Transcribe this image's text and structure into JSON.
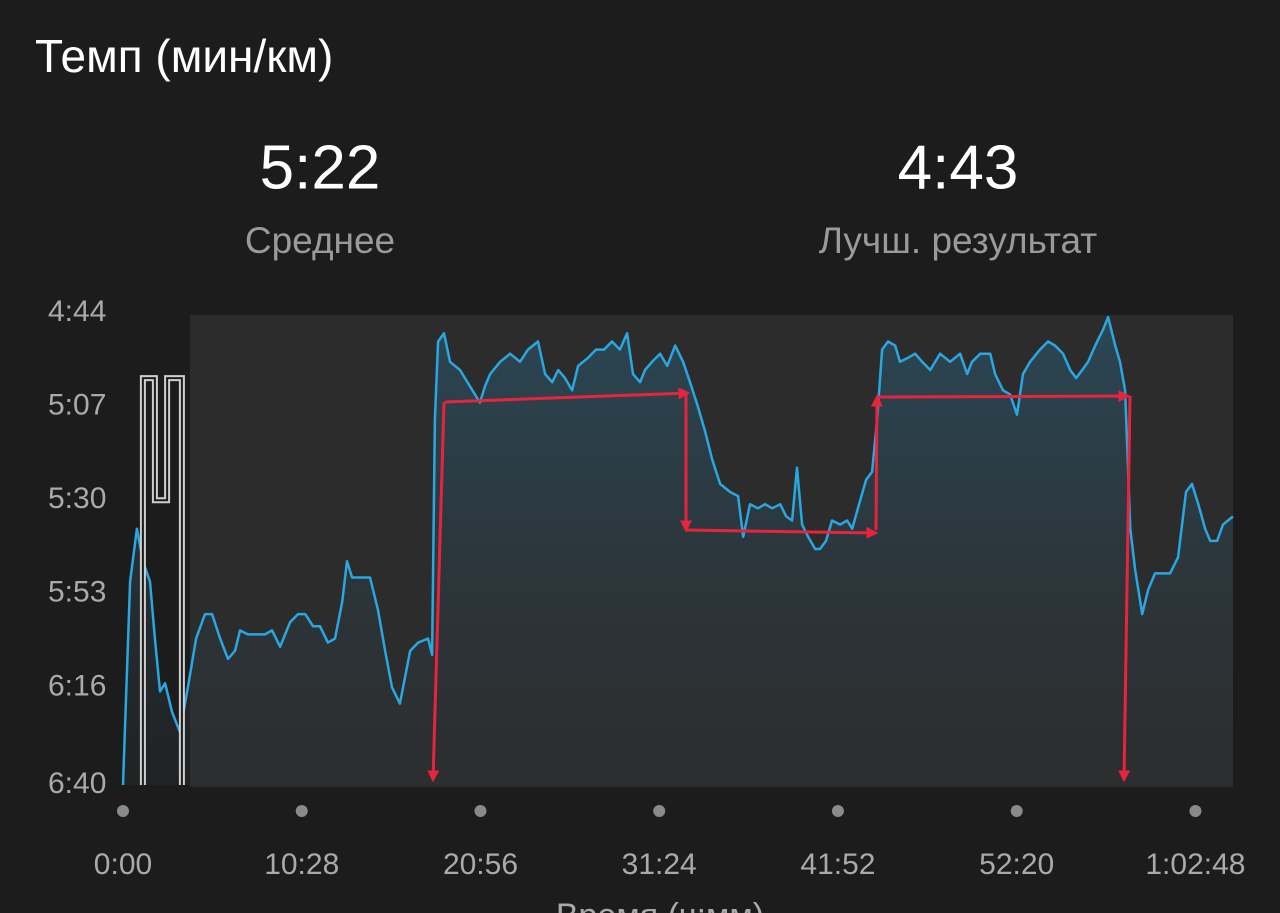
{
  "stats": [
    {
      "value": "5:22",
      "label": "Среднее"
    },
    {
      "value": "4:43",
      "label": "Лучш. результат"
    }
  ],
  "chart_data": {
    "type": "line",
    "title": "Темп (мин/км)",
    "xlabel": "Время (ч:мм)",
    "xlim": [
      0,
      3900
    ],
    "ylim": [
      400,
      284
    ],
    "xticks": [
      {
        "value": 0,
        "label": "0:00"
      },
      {
        "value": 628,
        "label": "10:28"
      },
      {
        "value": 1256,
        "label": "20:56"
      },
      {
        "value": 1884,
        "label": "31:24"
      },
      {
        "value": 2512,
        "label": "41:52"
      },
      {
        "value": 3140,
        "label": "52:20"
      },
      {
        "value": 3768,
        "label": "1:02:48"
      }
    ],
    "yticks": [
      {
        "value": 284,
        "label": "4:44"
      },
      {
        "value": 307,
        "label": "5:07"
      },
      {
        "value": 330,
        "label": "5:30"
      },
      {
        "value": 353,
        "label": "5:53"
      },
      {
        "value": 376,
        "label": "6:16"
      },
      {
        "value": 400,
        "label": "6:40"
      }
    ],
    "series": [
      {
        "color": "#2aa7e0",
        "x": [
          0,
          25,
          49,
          70,
          95,
          112,
          130,
          148,
          172,
          200,
          228,
          257,
          288,
          313,
          341,
          369,
          394,
          411,
          439,
          467,
          499,
          524,
          552,
          587,
          615,
          640,
          668,
          692,
          720,
          745,
          770,
          787,
          805,
          833,
          868,
          896,
          921,
          945,
          973,
          1009,
          1037,
          1072,
          1086,
          1096,
          1107,
          1128,
          1149,
          1184,
          1219,
          1254,
          1272,
          1290,
          1325,
          1360,
          1395,
          1423,
          1458,
          1483,
          1508,
          1529,
          1553,
          1578,
          1599,
          1634,
          1662,
          1690,
          1718,
          1746,
          1771,
          1792,
          1817,
          1834,
          1859,
          1887,
          1912,
          1940,
          1968,
          1992,
          2020,
          2045,
          2070,
          2098,
          2133,
          2161,
          2179,
          2203,
          2231,
          2256,
          2281,
          2309,
          2330,
          2351,
          2368,
          2386,
          2407,
          2432,
          2449,
          2470,
          2491,
          2520,
          2544,
          2562,
          2590,
          2611,
          2632,
          2650,
          2667,
          2688,
          2713,
          2730,
          2758,
          2783,
          2808,
          2836,
          2871,
          2906,
          2941,
          2966,
          2983,
          3012,
          3047,
          3064,
          3092,
          3117,
          3141,
          3162,
          3187,
          3222,
          3250,
          3275,
          3303,
          3328,
          3349,
          3370,
          3391,
          3416,
          3444,
          3461,
          3486,
          3503,
          3521,
          3539,
          3556,
          3581,
          3602,
          3626,
          3655,
          3679,
          3707,
          3735,
          3756,
          3778,
          3802,
          3820,
          3844,
          3865,
          3900
        ],
        "values": [
          400,
          350,
          337,
          345,
          350,
          364,
          377,
          375,
          382,
          387,
          376,
          364,
          358,
          358,
          364,
          369,
          367,
          362,
          363,
          363,
          363,
          362,
          366,
          360,
          358,
          358,
          361,
          361,
          365,
          364,
          355,
          345,
          349,
          349,
          349,
          357,
          367,
          376,
          380,
          367,
          365,
          364,
          368,
          310,
          291,
          289,
          296,
          298,
          302,
          306,
          302,
          299,
          296,
          294,
          296,
          293,
          291,
          299,
          301,
          298,
          300,
          303,
          297,
          295,
          293,
          293,
          291,
          293,
          289,
          299,
          301,
          298,
          296,
          294,
          297,
          292,
          296,
          301,
          307,
          313,
          320,
          326,
          328,
          329,
          339,
          331,
          332,
          331,
          332,
          331,
          334,
          335,
          322,
          336,
          339,
          342,
          342,
          340,
          335,
          336,
          335,
          337,
          330,
          325,
          323,
          310,
          293,
          291,
          292,
          296,
          295,
          294,
          296,
          298,
          294,
          296,
          294,
          299,
          296,
          294,
          294,
          299,
          303,
          304,
          309,
          299,
          296,
          293,
          291,
          292,
          294,
          298,
          300,
          298,
          296,
          292,
          288,
          285,
          292,
          296,
          303,
          337,
          347,
          358,
          352,
          348,
          348,
          348,
          344,
          328,
          326,
          331,
          337,
          340,
          340,
          336,
          334
        ]
      },
      {
        "color": "#cfcfcf",
        "x": [
          70,
          70,
          112,
          112,
          155,
          155,
          207,
          207
        ],
        "values": [
          400,
          300,
          300,
          330,
          330,
          300,
          300,
          400
        ]
      }
    ]
  }
}
